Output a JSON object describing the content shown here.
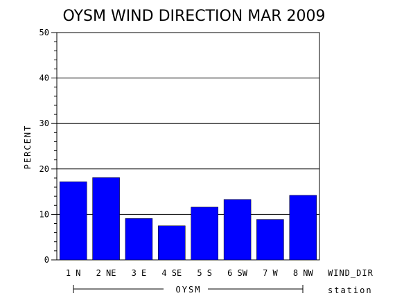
{
  "chart_data": {
    "type": "bar",
    "title": "OYSM WIND DIRECTION MAR 2009",
    "ylabel": "PERCENT",
    "xlabel": "WIND_DIR",
    "group_axis_label": "station",
    "group": "OYSM",
    "categories": [
      "1 N",
      "2 NE",
      "3 E",
      "4 SE",
      "5 S",
      "6 SW",
      "7 W",
      "8 NW"
    ],
    "values": [
      17.2,
      18.1,
      9.1,
      7.5,
      11.6,
      13.3,
      8.9,
      14.2
    ],
    "ylim": [
      0,
      50
    ],
    "yticks": [
      "0",
      "10",
      "20",
      "30",
      "40",
      "50"
    ],
    "grid": true,
    "bar_color": "#0000ff"
  }
}
